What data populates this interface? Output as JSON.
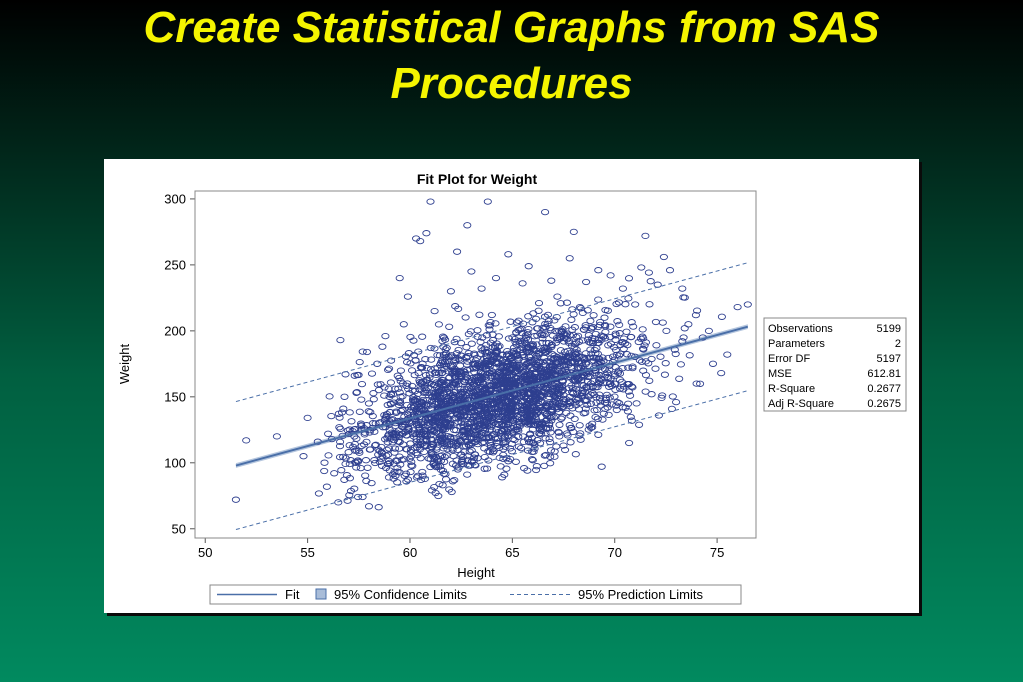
{
  "slide": {
    "title_line1": "Create Statistical Graphs from SAS",
    "title_line2": "Procedures"
  },
  "colors": {
    "title": "#f5f500",
    "marker": "#2e3f8f",
    "fit_line": "#4a6fa8",
    "confidence_band": "#a8bcd8"
  },
  "chart_data": {
    "type": "scatter",
    "title": "Fit Plot for Weight",
    "xlabel": "Height",
    "ylabel": "Weight",
    "xlim": [
      49.5,
      76.9
    ],
    "ylim": [
      43,
      306
    ],
    "xticks": [
      50,
      55,
      60,
      65,
      70,
      75
    ],
    "yticks": [
      50,
      100,
      150,
      200,
      250,
      300
    ],
    "fit": {
      "intercept": -118.9,
      "slope": 4.21
    },
    "confidence_halfwidth": 1.8,
    "prediction_halfwidth": 48.5,
    "fit_range": [
      51.5,
      76.5
    ],
    "points": [
      [
        51.5,
        72
      ],
      [
        52.0,
        117
      ],
      [
        53.5,
        120
      ],
      [
        54.8,
        105
      ],
      [
        55.0,
        134
      ],
      [
        55.5,
        116
      ],
      [
        56.0,
        122
      ],
      [
        56.3,
        92
      ],
      [
        56.5,
        70
      ],
      [
        56.6,
        193
      ],
      [
        56.8,
        150
      ],
      [
        57.0,
        108
      ],
      [
        57.3,
        166
      ],
      [
        57.6,
        96
      ],
      [
        57.9,
        184
      ],
      [
        58.0,
        67
      ],
      [
        58.2,
        130
      ],
      [
        58.4,
        175
      ],
      [
        58.6,
        112
      ],
      [
        58.8,
        196
      ],
      [
        59.0,
        150
      ],
      [
        59.2,
        88
      ],
      [
        59.5,
        240
      ],
      [
        59.7,
        205
      ],
      [
        59.9,
        226
      ],
      [
        60.1,
        170
      ],
      [
        60.3,
        270
      ],
      [
        60.5,
        268
      ],
      [
        60.6,
        93
      ],
      [
        60.8,
        274
      ],
      [
        61.0,
        298
      ],
      [
        61.2,
        215
      ],
      [
        61.4,
        140
      ],
      [
        61.6,
        83
      ],
      [
        61.8,
        187
      ],
      [
        62.0,
        230
      ],
      [
        62.3,
        260
      ],
      [
        62.5,
        106
      ],
      [
        62.8,
        280
      ],
      [
        63.0,
        245
      ],
      [
        63.2,
        98
      ],
      [
        63.5,
        232
      ],
      [
        63.8,
        298
      ],
      [
        64.0,
        212
      ],
      [
        64.2,
        240
      ],
      [
        64.5,
        89
      ],
      [
        64.8,
        258
      ],
      [
        65.0,
        195
      ],
      [
        65.3,
        178
      ],
      [
        65.5,
        236
      ],
      [
        65.8,
        249
      ],
      [
        66.0,
        102
      ],
      [
        66.3,
        221
      ],
      [
        66.6,
        290
      ],
      [
        66.9,
        238
      ],
      [
        67.2,
        226
      ],
      [
        67.5,
        113
      ],
      [
        67.8,
        255
      ],
      [
        68.0,
        275
      ],
      [
        68.3,
        218
      ],
      [
        68.6,
        237
      ],
      [
        68.9,
        127
      ],
      [
        69.2,
        246
      ],
      [
        69.5,
        210
      ],
      [
        69.8,
        242
      ],
      [
        70.1,
        140
      ],
      [
        70.4,
        232
      ],
      [
        70.7,
        115
      ],
      [
        71.0,
        220
      ],
      [
        71.3,
        248
      ],
      [
        71.5,
        272
      ],
      [
        71.8,
        152
      ],
      [
        72.1,
        235
      ],
      [
        72.4,
        256
      ],
      [
        72.7,
        246
      ],
      [
        73.0,
        146
      ],
      [
        73.3,
        232
      ],
      [
        73.6,
        205
      ],
      [
        74.0,
        160
      ],
      [
        74.3,
        195
      ],
      [
        74.6,
        200
      ],
      [
        74.8,
        175
      ],
      [
        75.2,
        168
      ],
      [
        75.5,
        182
      ],
      [
        76.0,
        218
      ],
      [
        76.5,
        220
      ]
    ],
    "fitstats": [
      {
        "label": "Observations",
        "value": "5199"
      },
      {
        "label": "Parameters",
        "value": "2"
      },
      {
        "label": "Error DF",
        "value": "5197"
      },
      {
        "label": "MSE",
        "value": "612.81"
      },
      {
        "label": "R-Square",
        "value": "0.2677"
      },
      {
        "label": "Adj R-Square",
        "value": "0.2675"
      }
    ],
    "legend": {
      "placement": "bottom",
      "fit": "Fit",
      "confidence": "95% Confidence Limits",
      "prediction": "95% Prediction Limits"
    }
  }
}
